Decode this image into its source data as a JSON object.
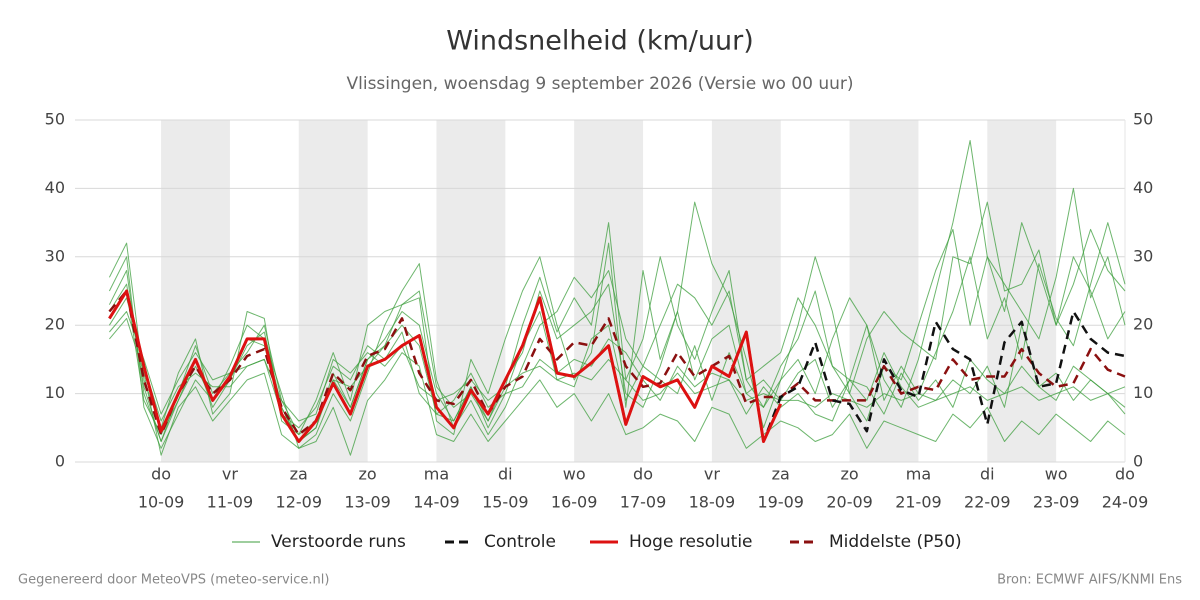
{
  "chart_data": {
    "type": "line",
    "title": "Windsnelheid (km/uur)",
    "subtitle": "Vlissingen, woensdag  9 september 2026 (Versie wo 00 uur)",
    "footer_left": "Gegenereerd door MeteoVPS (meteo-service.nl)",
    "footer_right": "Bron: ECMWF AIFS/KNMI Ens",
    "alternate_shading": true,
    "grid": true,
    "legend": "bottom",
    "xlim": [
      -0.25,
      15
    ],
    "ylim": [
      0,
      50
    ],
    "y2lim": [
      0,
      50
    ],
    "yticks": [
      0,
      10,
      20,
      30,
      40,
      50
    ],
    "y2ticks": [
      0,
      10,
      20,
      30,
      40,
      50
    ],
    "xticks": [
      {
        "value": 1,
        "label": [
          "do",
          "10-09"
        ]
      },
      {
        "value": 2,
        "label": [
          "vr",
          "11-09"
        ]
      },
      {
        "value": 3,
        "label": [
          "za",
          "12-09"
        ]
      },
      {
        "value": 4,
        "label": [
          "zo",
          "13-09"
        ]
      },
      {
        "value": 5,
        "label": [
          "ma",
          "14-09"
        ]
      },
      {
        "value": 6,
        "label": [
          "di",
          "15-09"
        ]
      },
      {
        "value": 7,
        "label": [
          "wo",
          "16-09"
        ]
      },
      {
        "value": 8,
        "label": [
          "do",
          "17-09"
        ]
      },
      {
        "value": 9,
        "label": [
          "vr",
          "18-09"
        ]
      },
      {
        "value": 10,
        "label": [
          "za",
          "19-09"
        ]
      },
      {
        "value": 11,
        "label": [
          "zo",
          "20-09"
        ]
      },
      {
        "value": 12,
        "label": [
          "ma",
          "21-09"
        ]
      },
      {
        "value": 13,
        "label": [
          "di",
          "22-09"
        ]
      },
      {
        "value": 14,
        "label": [
          "wo",
          "23-09"
        ]
      },
      {
        "value": 15,
        "label": [
          "do",
          "24-09"
        ]
      }
    ],
    "x": [
      0.25,
      0.5,
      0.75,
      1,
      1.25,
      1.5,
      1.75,
      2,
      2.25,
      2.5,
      2.75,
      3,
      3.25,
      3.5,
      3.75,
      4,
      4.25,
      4.5,
      4.75,
      5,
      5.25,
      5.5,
      5.75,
      6,
      6.25,
      6.5,
      6.75,
      7,
      7.25,
      7.5,
      7.75,
      8,
      8.25,
      8.5,
      8.75,
      9,
      9.25,
      9.5,
      9.75,
      10,
      10.25,
      10.5,
      10.75,
      11,
      11.25,
      11.5,
      11.75,
      12,
      12.25,
      12.5,
      12.75,
      13,
      13.25,
      13.5,
      13.75,
      14,
      14.25,
      14.5,
      14.75,
      15
    ],
    "ensemble": {
      "name": "Verstoorde runs",
      "color": "#3c9e3c",
      "members": [
        [
          23,
          28,
          10,
          3,
          9,
          15,
          8,
          12,
          17,
          19,
          8,
          3,
          5,
          12,
          8,
          15,
          18,
          22,
          20,
          10,
          6,
          11,
          6,
          12,
          16,
          25,
          18,
          20,
          22,
          26,
          10,
          8,
          14,
          22,
          12,
          18,
          20,
          10,
          8,
          12,
          15,
          10,
          18,
          24,
          20,
          12,
          8,
          15,
          25,
          35,
          47,
          30,
          22,
          35,
          28,
          20,
          30,
          25,
          18,
          22
        ],
        [
          20,
          24,
          14,
          6,
          11,
          13,
          11,
          11,
          14,
          15,
          7,
          5,
          8,
          14,
          12,
          17,
          15,
          19,
          10,
          7,
          9,
          13,
          8,
          10,
          11,
          15,
          13,
          15,
          14,
          18,
          16,
          12,
          9,
          14,
          11,
          13,
          12,
          7,
          11,
          8,
          10,
          7,
          6,
          12,
          9,
          16,
          11,
          8,
          9,
          12,
          10,
          14,
          8,
          20,
          11,
          9,
          14,
          12,
          10,
          8
        ],
        [
          25,
          30,
          8,
          2,
          7,
          12,
          9,
          14,
          20,
          18,
          10,
          2,
          4,
          10,
          6,
          13,
          20,
          25,
          29,
          12,
          5,
          9,
          4,
          8,
          14,
          20,
          22,
          27,
          24,
          28,
          18,
          14,
          20,
          26,
          24,
          20,
          25,
          12,
          14,
          16,
          24,
          20,
          14,
          10,
          18,
          22,
          19,
          17,
          15,
          30,
          29,
          38,
          25,
          26,
          31,
          20,
          26,
          34,
          28,
          25
        ],
        [
          19,
          22,
          15,
          7,
          12,
          16,
          12,
          13,
          14,
          15,
          9,
          6,
          7,
          15,
          13,
          16,
          14,
          17,
          11,
          9,
          10,
          12,
          9,
          11,
          13,
          14,
          12,
          13,
          12,
          15,
          12,
          9,
          10,
          13,
          10,
          11,
          12,
          9,
          10,
          9,
          9,
          8,
          10,
          9,
          8,
          10,
          9,
          10,
          9,
          10,
          11,
          9,
          10,
          11,
          9,
          10,
          11,
          9,
          10,
          11
        ],
        [
          27,
          32,
          12,
          5,
          13,
          18,
          7,
          10,
          22,
          21,
          6,
          4,
          9,
          16,
          9,
          20,
          22,
          23,
          24,
          6,
          4,
          15,
          10,
          18,
          25,
          30,
          20,
          12,
          16,
          32,
          8,
          28,
          15,
          22,
          38,
          29,
          24,
          15,
          5,
          12,
          20,
          30,
          22,
          10,
          6,
          14,
          12,
          20,
          28,
          34,
          20,
          30,
          26,
          22,
          18,
          27,
          40,
          24,
          30,
          20
        ],
        [
          18,
          21,
          13,
          1,
          8,
          11,
          6,
          9,
          12,
          13,
          4,
          2,
          3,
          8,
          1,
          9,
          12,
          16,
          14,
          4,
          3,
          7,
          3,
          6,
          9,
          12,
          8,
          10,
          6,
          10,
          4,
          5,
          7,
          6,
          3,
          8,
          7,
          2,
          4,
          6,
          5,
          3,
          4,
          7,
          2,
          6,
          5,
          4,
          3,
          7,
          5,
          8,
          3,
          6,
          4,
          7,
          5,
          3,
          6,
          4
        ],
        [
          22,
          26,
          11,
          3,
          10,
          17,
          10,
          13,
          16,
          20,
          9,
          4,
          6,
          12,
          11,
          14,
          17,
          23,
          25,
          11,
          8,
          10,
          6,
          11,
          20,
          27,
          19,
          24,
          20,
          35,
          12,
          18,
          30,
          20,
          15,
          22,
          28,
          12,
          8,
          14,
          18,
          25,
          14,
          12,
          20,
          9,
          14,
          10,
          16,
          22,
          30,
          18,
          24,
          15,
          29,
          21,
          17,
          26,
          35,
          26
        ],
        [
          21,
          25,
          9,
          4,
          9,
          14,
          9,
          12,
          18,
          17,
          8,
          3,
          5,
          13,
          8,
          15,
          17,
          20,
          17,
          7,
          6,
          11,
          5,
          10,
          17,
          22,
          12,
          11,
          18,
          20,
          9,
          14,
          12,
          10,
          17,
          9,
          16,
          10,
          12,
          9,
          13,
          15,
          8,
          12,
          11,
          7,
          13,
          9,
          12,
          8,
          15,
          12,
          10,
          14,
          11,
          13,
          9,
          12,
          10,
          7
        ]
      ]
    },
    "series": [
      {
        "name": "Controle",
        "color": "#111111",
        "dash": true,
        "values": [
          21,
          25,
          14,
          4.5,
          10,
          15,
          9,
          12.5,
          18,
          18,
          7,
          3,
          6,
          11.5,
          7,
          14,
          15,
          17,
          18.5,
          8,
          5,
          10.5,
          7,
          12,
          17,
          24,
          13,
          12.5,
          14.5,
          17,
          5.5,
          12.5,
          11,
          12,
          8,
          14,
          12.5,
          19,
          3,
          9.5,
          11,
          17.5,
          9,
          8.5,
          4.5,
          15,
          10.5,
          9.5,
          20.5,
          16.5,
          15,
          5.5,
          17.5,
          20.5,
          11,
          11.5,
          22,
          18,
          16,
          15.5
        ]
      },
      {
        "name": "Hoge resolutie",
        "color": "#dd1111",
        "dash": false,
        "values": [
          21,
          25,
          14,
          4.5,
          10,
          15,
          9,
          12.5,
          18,
          18,
          7,
          3,
          6,
          11.5,
          7,
          14,
          15,
          17,
          18.5,
          8,
          5,
          10.5,
          7,
          12,
          17,
          24,
          13,
          12.5,
          14.5,
          17,
          5.5,
          12.5,
          11,
          12,
          8,
          14,
          12.5,
          19,
          3,
          8.5,
          null,
          null,
          null,
          null,
          null,
          null,
          null,
          null,
          null,
          null,
          null,
          null,
          null,
          null,
          null,
          null,
          null,
          null,
          null,
          null
        ]
      },
      {
        "name": "Middelste (P50)",
        "color": "#8b1010",
        "dash": true,
        "values": [
          22,
          25,
          12,
          4,
          10,
          14,
          10,
          12,
          15.5,
          16.5,
          8,
          4,
          6,
          13,
          10.5,
          15.5,
          16.5,
          21,
          13,
          9,
          8.5,
          12,
          7,
          11,
          12.5,
          18,
          15,
          17.5,
          17,
          21,
          14,
          11,
          11.5,
          16,
          12.5,
          14,
          15.5,
          8.5,
          9.5,
          9.5,
          11.5,
          9,
          9,
          9,
          9,
          14,
          10,
          11,
          10.5,
          15,
          12,
          12.5,
          12.5,
          16.5,
          13,
          11,
          11.5,
          16.5,
          13.5,
          12.5
        ]
      }
    ]
  }
}
